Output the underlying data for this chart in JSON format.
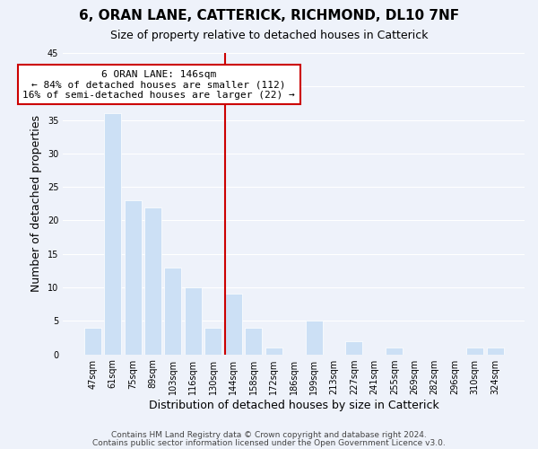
{
  "title": "6, ORAN LANE, CATTERICK, RICHMOND, DL10 7NF",
  "subtitle": "Size of property relative to detached houses in Catterick",
  "xlabel": "Distribution of detached houses by size in Catterick",
  "ylabel": "Number of detached properties",
  "bar_labels": [
    "47sqm",
    "61sqm",
    "75sqm",
    "89sqm",
    "103sqm",
    "116sqm",
    "130sqm",
    "144sqm",
    "158sqm",
    "172sqm",
    "186sqm",
    "199sqm",
    "213sqm",
    "227sqm",
    "241sqm",
    "255sqm",
    "269sqm",
    "282sqm",
    "296sqm",
    "310sqm",
    "324sqm"
  ],
  "bar_values": [
    4,
    36,
    23,
    22,
    13,
    10,
    4,
    9,
    4,
    1,
    0,
    5,
    0,
    2,
    0,
    1,
    0,
    0,
    0,
    1,
    1
  ],
  "highlight_index": 7,
  "bar_color": "#cce0f5",
  "vline_color": "#cc0000",
  "vline_x": 7,
  "annotation_title": "6 ORAN LANE: 146sqm",
  "annotation_line1": "← 84% of detached houses are smaller (112)",
  "annotation_line2": "16% of semi-detached houses are larger (22) →",
  "annotation_box_color": "#ffffff",
  "annotation_box_edge": "#cc0000",
  "ylim": [
    0,
    45
  ],
  "yticks": [
    0,
    5,
    10,
    15,
    20,
    25,
    30,
    35,
    40,
    45
  ],
  "background_color": "#eef2fa",
  "footer1": "Contains HM Land Registry data © Crown copyright and database right 2024.",
  "footer2": "Contains public sector information licensed under the Open Government Licence v3.0.",
  "title_fontsize": 11,
  "subtitle_fontsize": 9,
  "axis_label_fontsize": 9,
  "tick_fontsize": 7,
  "annotation_fontsize": 8,
  "footer_fontsize": 6.5
}
